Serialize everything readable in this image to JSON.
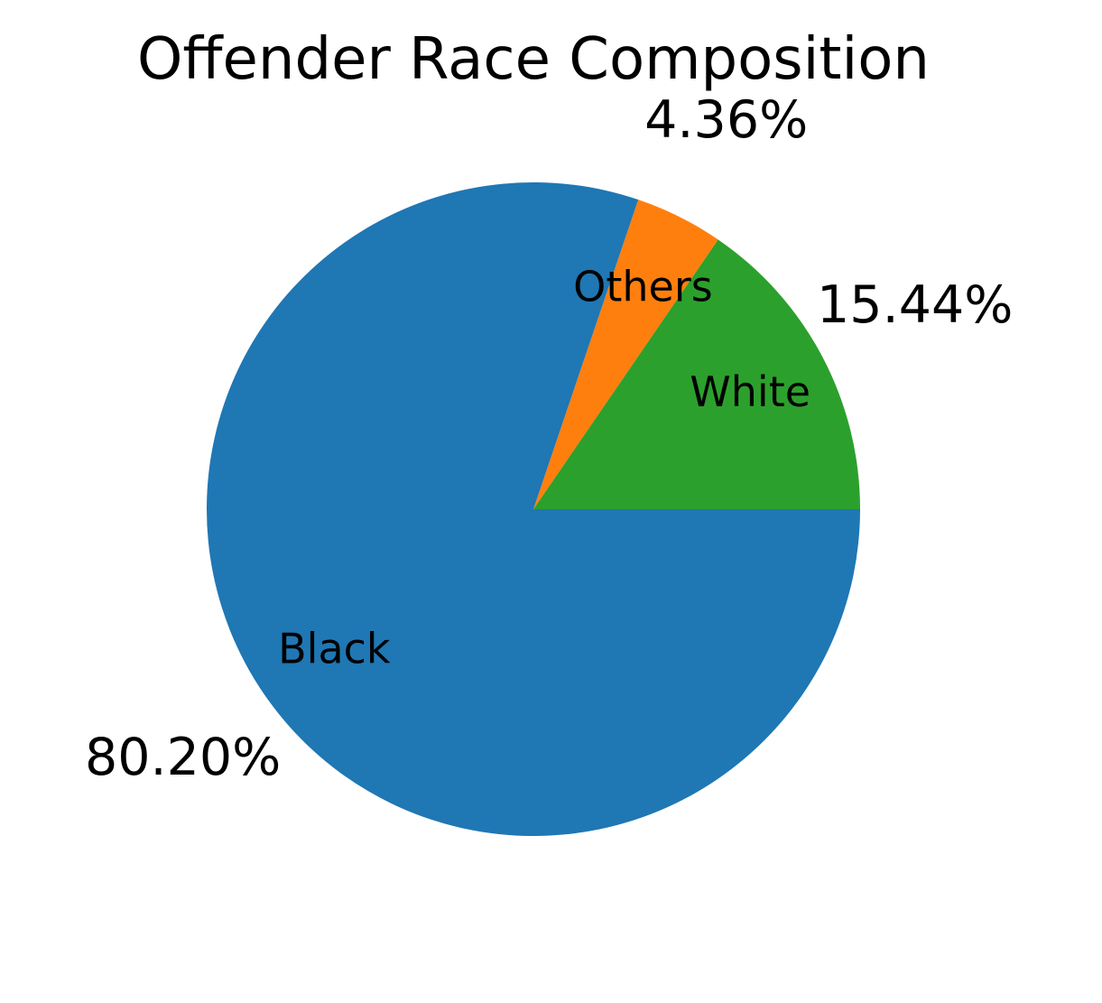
{
  "chart_data": {
    "type": "pie",
    "title": "Offender Race Composition",
    "categories": [
      "White",
      "Others",
      "Black"
    ],
    "values": [
      15.44,
      4.36,
      80.2
    ],
    "value_labels": [
      "15.44%",
      "4.36%",
      "80.20%"
    ],
    "colors": [
      "#2ca02c",
      "#ff7f0e",
      "#1f77b4"
    ],
    "start_angle_deg": 0,
    "direction": "clockwise-on-screen"
  }
}
